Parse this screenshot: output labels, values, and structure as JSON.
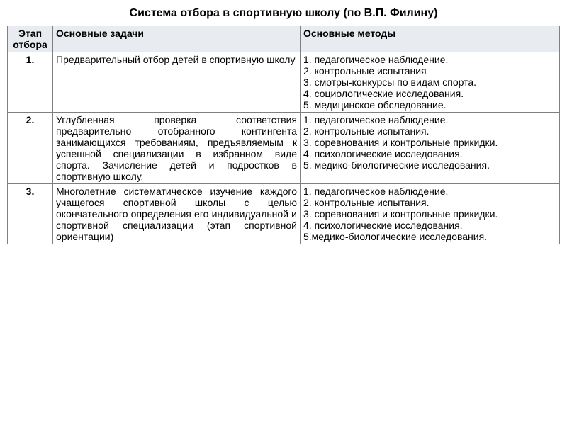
{
  "title": "Система отбора в спортивную школу (по В.П. Филину)",
  "headers": {
    "stage": "Этап отбора",
    "tasks": "Основные задачи",
    "methods": "Основные методы"
  },
  "rows": [
    {
      "stage": "1.",
      "tasks": "Предварительный отбор детей в спортивную школу",
      "methods": [
        "1. педагогическое наблюдение.",
        "2. контрольные испытания",
        "3. смотры-конкурсы по видам спорта.",
        "4. социологические исследования.",
        "5. медицинское обследование."
      ]
    },
    {
      "stage": "2.",
      "tasks": "Углубленная проверка соответствия предварительно отобранного контингента занимающихся требованиям, предъявляемым к успешной специализации в избранном виде спорта. Зачисление детей и подростков в спортивную школу.",
      "methods": [
        "1. педагогическое наблюдение.",
        "2. контрольные испытания.",
        "3. соревнования и контрольные прикидки.",
        "4. психологические исследования.",
        "5. медико-биологические исследования."
      ]
    },
    {
      "stage": "3.",
      "tasks": "Многолетние систематическое изучение каждого учащегося спортивной школы с целью окончательного определения его индивидуальной и спортивной специализации (этап спортивной ориентации)",
      "methods": [
        "1. педагогическое наблюдение.",
        "2. контрольные испытания.",
        "3. соревнования и контрольные прикидки.",
        "4. психологические исследования.",
        "5.медико-биологические исследования."
      ]
    }
  ],
  "colors": {
    "header_bg": "#e8ebf0",
    "border": "#808080",
    "text": "#000000",
    "background": "#ffffff"
  },
  "fonts": {
    "title_size": 16,
    "body_size": 14,
    "family": "Arial"
  }
}
